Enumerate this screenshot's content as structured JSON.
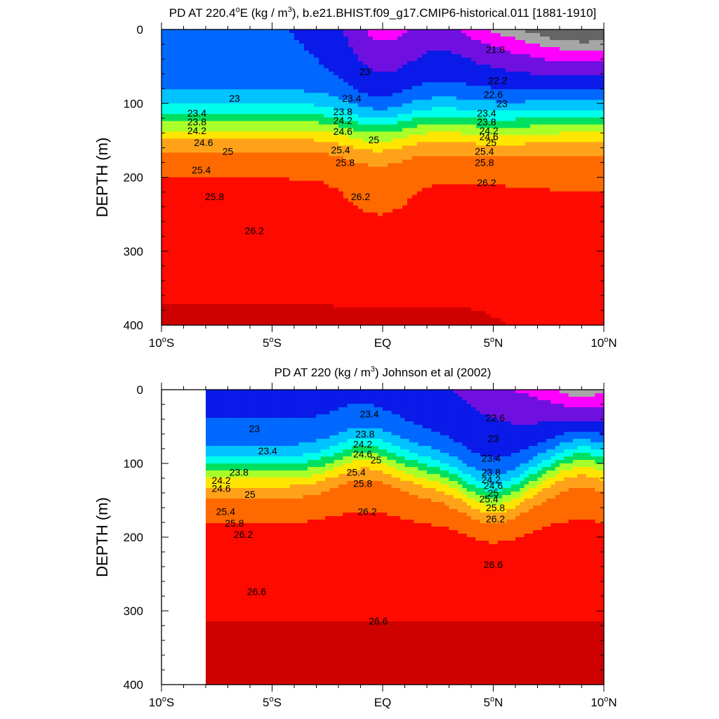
{
  "chart_data": [
    {
      "type": "contour",
      "title_main": "PD AT 220.4",
      "title_deg": "o",
      "title_mid": "E (kg / m",
      "title_sup": "3",
      "title_tail": "), b.e21.BHIST.f09_g17.CMIP6-historical.011 [1881-1910]",
      "ylabel": "DEPTH (m)",
      "ylim": [
        400,
        0
      ],
      "xlim": [
        -10,
        10
      ],
      "y_ticks": [
        0,
        100,
        200,
        300,
        400
      ],
      "x_ticks": [
        {
          "value": -10,
          "num": "10",
          "deg": "o",
          "hemi": "S"
        },
        {
          "value": -5,
          "num": "5",
          "deg": "o",
          "hemi": "S"
        },
        {
          "value": 0,
          "num": "EQ",
          "deg": "",
          "hemi": ""
        },
        {
          "value": 5,
          "num": "5",
          "deg": "o",
          "hemi": "N"
        },
        {
          "value": 10,
          "num": "10",
          "deg": "o",
          "hemi": "N"
        }
      ],
      "lat_start": -10,
      "contour_labels": [
        {
          "text": "23",
          "x": -6.7,
          "y": 93
        },
        {
          "text": "23",
          "x": -0.8,
          "y": 57
        },
        {
          "text": "21.8",
          "x": 5.1,
          "y": 27
        },
        {
          "text": "22.2",
          "x": 5.2,
          "y": 69
        },
        {
          "text": "22.6",
          "x": 5.0,
          "y": 88
        },
        {
          "text": "23",
          "x": 5.4,
          "y": 100
        },
        {
          "text": "23.4",
          "x": -8.4,
          "y": 113
        },
        {
          "text": "23.8",
          "x": -8.4,
          "y": 125
        },
        {
          "text": "24.2",
          "x": -8.4,
          "y": 137
        },
        {
          "text": "24.6",
          "x": -8.1,
          "y": 153
        },
        {
          "text": "25",
          "x": -7.0,
          "y": 165
        },
        {
          "text": "25.4",
          "x": -8.2,
          "y": 190
        },
        {
          "text": "25.8",
          "x": -7.6,
          "y": 226
        },
        {
          "text": "26.2",
          "x": -5.8,
          "y": 272
        },
        {
          "text": "23.4",
          "x": -1.4,
          "y": 93
        },
        {
          "text": "23.8",
          "x": -1.8,
          "y": 111
        },
        {
          "text": "24.2",
          "x": -1.8,
          "y": 123
        },
        {
          "text": "24.6",
          "x": -1.8,
          "y": 138
        },
        {
          "text": "25",
          "x": -0.4,
          "y": 149
        },
        {
          "text": "25.4",
          "x": -1.9,
          "y": 163
        },
        {
          "text": "25.8",
          "x": -1.7,
          "y": 180
        },
        {
          "text": "26.2",
          "x": -1.0,
          "y": 226
        },
        {
          "text": "23.4",
          "x": 4.7,
          "y": 113
        },
        {
          "text": "23.8",
          "x": 4.7,
          "y": 125
        },
        {
          "text": "24.2",
          "x": 4.8,
          "y": 137
        },
        {
          "text": "24.6",
          "x": 4.8,
          "y": 145
        },
        {
          "text": "25",
          "x": 4.9,
          "y": 153
        },
        {
          "text": "25.4",
          "x": 4.6,
          "y": 165
        },
        {
          "text": "25.8",
          "x": 4.6,
          "y": 180
        },
        {
          "text": "26.2",
          "x": 4.7,
          "y": 207
        }
      ]
    },
    {
      "type": "contour",
      "title_main": "PD AT 220 (kg / m",
      "title_sup": "3",
      "title_tail": ") Johnson et al (2002)",
      "ylabel": "DEPTH (m)",
      "ylim": [
        400,
        0
      ],
      "xlim": [
        -10,
        10
      ],
      "y_ticks": [
        0,
        100,
        200,
        300,
        400
      ],
      "x_ticks": [
        {
          "value": -10,
          "num": "10",
          "deg": "o",
          "hemi": "S"
        },
        {
          "value": -5,
          "num": "5",
          "deg": "o",
          "hemi": "S"
        },
        {
          "value": 0,
          "num": "EQ",
          "deg": "",
          "hemi": ""
        },
        {
          "value": 5,
          "num": "5",
          "deg": "o",
          "hemi": "N"
        },
        {
          "value": 10,
          "num": "10",
          "deg": "o",
          "hemi": "N"
        }
      ],
      "lat_start": -8,
      "contour_labels": [
        {
          "text": "23",
          "x": -5.8,
          "y": 53
        },
        {
          "text": "23.4",
          "x": -5.2,
          "y": 83
        },
        {
          "text": "23.8",
          "x": -6.5,
          "y": 112
        },
        {
          "text": "24.2",
          "x": -7.3,
          "y": 123
        },
        {
          "text": "24.6",
          "x": -7.3,
          "y": 134
        },
        {
          "text": "25",
          "x": -6.0,
          "y": 142
        },
        {
          "text": "25.4",
          "x": -7.1,
          "y": 165
        },
        {
          "text": "25.8",
          "x": -6.7,
          "y": 181
        },
        {
          "text": "26.2",
          "x": -6.3,
          "y": 196
        },
        {
          "text": "26.6",
          "x": -5.7,
          "y": 274
        },
        {
          "text": "23.4",
          "x": -0.6,
          "y": 33
        },
        {
          "text": "23.8",
          "x": -0.8,
          "y": 60
        },
        {
          "text": "24.2",
          "x": -0.9,
          "y": 74
        },
        {
          "text": "24.6",
          "x": -0.9,
          "y": 87
        },
        {
          "text": "25",
          "x": -0.3,
          "y": 95
        },
        {
          "text": "25.4",
          "x": -1.2,
          "y": 112
        },
        {
          "text": "25.8",
          "x": -0.9,
          "y": 127
        },
        {
          "text": "26.2",
          "x": -0.7,
          "y": 165
        },
        {
          "text": "26.6",
          "x": -0.2,
          "y": 314
        },
        {
          "text": "22.6",
          "x": 5.1,
          "y": 38
        },
        {
          "text": "23",
          "x": 5.0,
          "y": 66
        },
        {
          "text": "23.4",
          "x": 4.9,
          "y": 93
        },
        {
          "text": "23.8",
          "x": 4.9,
          "y": 112
        },
        {
          "text": "24.2",
          "x": 4.9,
          "y": 122
        },
        {
          "text": "24.6",
          "x": 5.0,
          "y": 130
        },
        {
          "text": "25",
          "x": 5.0,
          "y": 140
        },
        {
          "text": "25.4",
          "x": 4.8,
          "y": 148
        },
        {
          "text": "25.8",
          "x": 5.1,
          "y": 160
        },
        {
          "text": "26.2",
          "x": 5.1,
          "y": 175
        },
        {
          "text": "26.6",
          "x": 5.0,
          "y": 237
        }
      ]
    }
  ]
}
